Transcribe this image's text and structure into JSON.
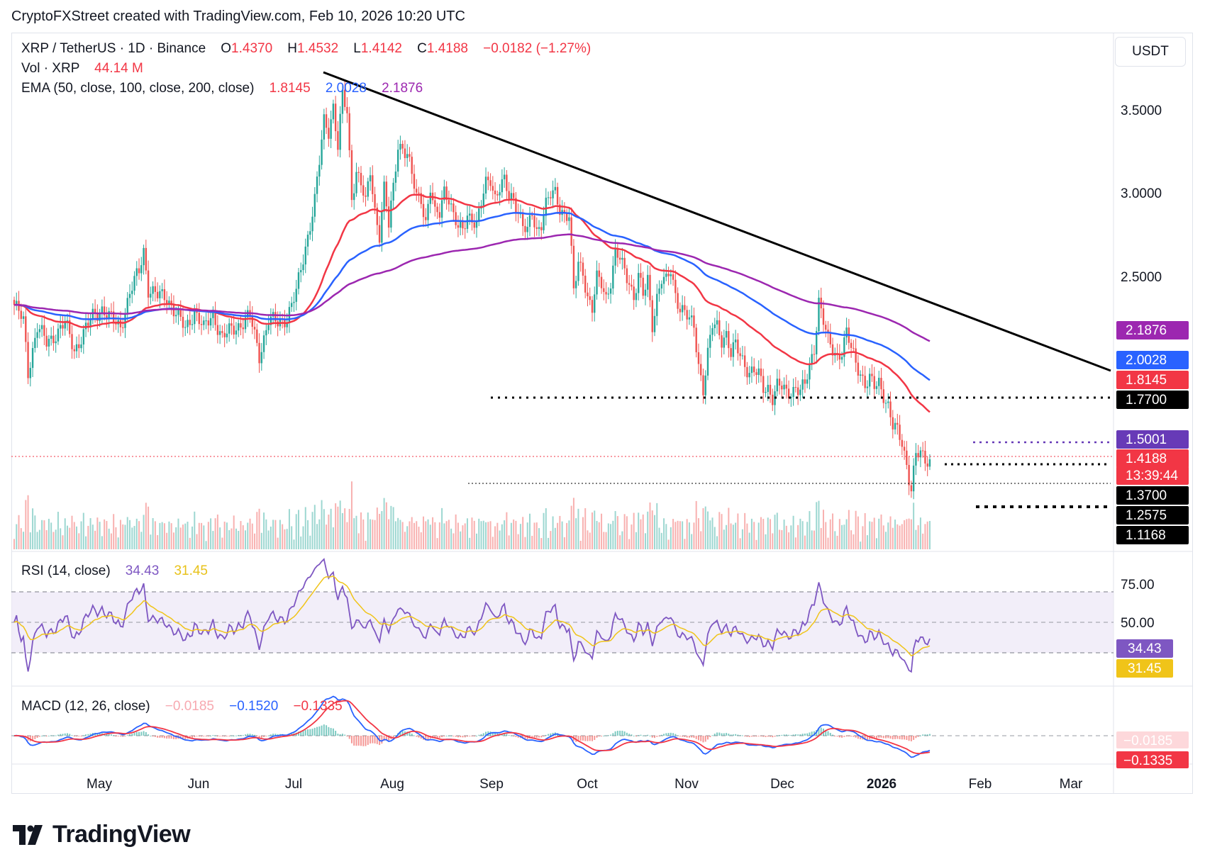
{
  "header": {
    "credit": "CryptoFXStreet created with TradingView.com, Feb 10, 2026 10:20 UTC"
  },
  "toolbar": {
    "currency_label": "USDT"
  },
  "legend": {
    "symbol": "XRP / TetherUS · 1D · Binance",
    "open_label": "O",
    "open": "1.4370",
    "high_label": "H",
    "high": "1.4532",
    "low_label": "L",
    "low": "1.4142",
    "close_label": "C",
    "close": "1.4188",
    "change": "−0.0182 (−1.27%)",
    "vol_label": "Vol · XRP",
    "vol": "44.14 M",
    "ema_label": "EMA (50, close, 100, close, 200, close)",
    "ema50": "1.8145",
    "ema100": "2.0028",
    "ema200": "2.1876",
    "rsi_label": "RSI (14, close)",
    "rsi": "34.43",
    "rsi_ma": "31.45",
    "macd_label": "MACD (12, 26, close)",
    "macd_hist": "−0.0185",
    "macd_line": "−0.1520",
    "macd_signal": "−0.1335"
  },
  "colors": {
    "up": "#26a69a",
    "down": "#ef5350",
    "ema50": "#f23645",
    "ema100": "#2962ff",
    "ema200": "#9c27b0",
    "rsi": "#7e57c2",
    "rsi_ma": "#f0c419",
    "trendline": "#000000"
  },
  "chart_data": {
    "type": "candlestick",
    "price_axis_ticks": [
      "3.5000",
      "3.0000",
      "2.5000"
    ],
    "time_axis_ticks": [
      "May",
      "Jun",
      "Jul",
      "Aug",
      "Sep",
      "Oct",
      "Nov",
      "Dec",
      "2026",
      "Feb",
      "Mar"
    ],
    "rsi_axis_ticks": [
      "75.00",
      "50.00"
    ],
    "price_labels": [
      {
        "value": "2.1876",
        "color": "#9c27b0",
        "text_color": "#ffffff"
      },
      {
        "value": "2.0028",
        "color": "#2962ff",
        "text_color": "#ffffff"
      },
      {
        "value": "1.8145",
        "color": "#f23645",
        "text_color": "#ffffff"
      },
      {
        "value": "1.7700",
        "color": "#000000",
        "text_color": "#ffffff"
      },
      {
        "value": "1.5001",
        "color": "#673ab7",
        "text_color": "#ffffff"
      },
      {
        "value": "1.4188",
        "color": "#f23645",
        "text_color": "#ffffff"
      },
      {
        "value": "13:39:44",
        "color": "#f23645",
        "text_color": "#ffffff"
      },
      {
        "value": "1.3700",
        "color": "#000000",
        "text_color": "#ffffff"
      },
      {
        "value": "1.2575",
        "color": "#000000",
        "text_color": "#ffffff"
      },
      {
        "value": "1.1168",
        "color": "#000000",
        "text_color": "#ffffff"
      }
    ],
    "rsi_labels": [
      {
        "value": "34.43",
        "color": "#7e57c2",
        "text_color": "#ffffff"
      },
      {
        "value": "31.45",
        "color": "#f0c419",
        "text_color": "#131722"
      }
    ],
    "macd_labels": [
      {
        "value": "−0.0185",
        "color": "#fdd8db",
        "text_color": "#131722"
      },
      {
        "value": "−0.1335",
        "color": "#f23645",
        "text_color": "#ffffff"
      }
    ],
    "close_series": [
      [
        0,
        2.35
      ],
      [
        4,
        2.25
      ],
      [
        6,
        1.95
      ],
      [
        10,
        2.22
      ],
      [
        14,
        2.12
      ],
      [
        18,
        2.18
      ],
      [
        22,
        2.24
      ],
      [
        26,
        2.08
      ],
      [
        30,
        2.18
      ],
      [
        34,
        2.28
      ],
      [
        38,
        2.33
      ],
      [
        42,
        2.26
      ],
      [
        46,
        2.22
      ],
      [
        50,
        2.42
      ],
      [
        54,
        2.55
      ],
      [
        56,
        2.68
      ],
      [
        58,
        2.45
      ],
      [
        62,
        2.4
      ],
      [
        66,
        2.4
      ],
      [
        70,
        2.3
      ],
      [
        74,
        2.2
      ],
      [
        78,
        2.32
      ],
      [
        82,
        2.2
      ],
      [
        86,
        2.3
      ],
      [
        90,
        2.15
      ],
      [
        94,
        2.2
      ],
      [
        98,
        2.24
      ],
      [
        102,
        2.28
      ],
      [
        106,
        2.05
      ],
      [
        110,
        2.26
      ],
      [
        114,
        2.24
      ],
      [
        118,
        2.28
      ],
      [
        122,
        2.42
      ],
      [
        126,
        2.7
      ],
      [
        130,
        2.98
      ],
      [
        132,
        3.2
      ],
      [
        134,
        3.45
      ],
      [
        136,
        3.4
      ],
      [
        138,
        3.55
      ],
      [
        140,
        3.3
      ],
      [
        142,
        3.6
      ],
      [
        144,
        3.5
      ],
      [
        146,
        3.0
      ],
      [
        148,
        3.16
      ],
      [
        150,
        3.08
      ],
      [
        152,
        2.95
      ],
      [
        154,
        3.15
      ],
      [
        156,
        2.92
      ],
      [
        158,
        2.78
      ],
      [
        160,
        3.05
      ],
      [
        162,
        2.82
      ],
      [
        164,
        3.05
      ],
      [
        166,
        3.32
      ],
      [
        168,
        3.3
      ],
      [
        170,
        3.25
      ],
      [
        172,
        3.12
      ],
      [
        174,
        3.0
      ],
      [
        176,
        3.0
      ],
      [
        178,
        2.85
      ],
      [
        180,
        3.05
      ],
      [
        182,
        2.88
      ],
      [
        184,
        2.9
      ],
      [
        186,
        3.05
      ],
      [
        188,
        3.0
      ],
      [
        190,
        2.88
      ],
      [
        192,
        2.8
      ],
      [
        194,
        2.8
      ],
      [
        196,
        2.9
      ],
      [
        198,
        2.88
      ],
      [
        200,
        2.82
      ],
      [
        202,
        2.95
      ],
      [
        204,
        3.08
      ],
      [
        206,
        3.12
      ],
      [
        208,
        3.0
      ],
      [
        210,
        3.05
      ],
      [
        212,
        3.08
      ],
      [
        214,
        3.0
      ],
      [
        216,
        3.0
      ],
      [
        218,
        2.92
      ],
      [
        220,
        2.82
      ],
      [
        222,
        2.78
      ],
      [
        224,
        2.9
      ],
      [
        226,
        2.8
      ],
      [
        228,
        2.85
      ],
      [
        230,
        2.95
      ],
      [
        232,
        3.0
      ],
      [
        234,
        3.02
      ],
      [
        236,
        2.94
      ],
      [
        238,
        2.9
      ],
      [
        240,
        2.88
      ],
      [
        242,
        2.42
      ],
      [
        244,
        2.6
      ],
      [
        246,
        2.56
      ],
      [
        248,
        2.4
      ],
      [
        250,
        2.32
      ],
      [
        252,
        2.5
      ],
      [
        254,
        2.48
      ],
      [
        256,
        2.4
      ],
      [
        258,
        2.5
      ],
      [
        260,
        2.65
      ],
      [
        262,
        2.62
      ],
      [
        264,
        2.55
      ],
      [
        266,
        2.5
      ],
      [
        268,
        2.4
      ],
      [
        270,
        2.52
      ],
      [
        272,
        2.4
      ],
      [
        274,
        2.5
      ],
      [
        276,
        2.24
      ],
      [
        278,
        2.4
      ],
      [
        280,
        2.5
      ],
      [
        282,
        2.48
      ],
      [
        284,
        2.56
      ],
      [
        286,
        2.42
      ],
      [
        288,
        2.34
      ],
      [
        290,
        2.3
      ],
      [
        292,
        2.25
      ],
      [
        294,
        2.22
      ],
      [
        296,
        2.0
      ],
      [
        298,
        1.85
      ],
      [
        300,
        2.05
      ],
      [
        302,
        2.22
      ],
      [
        304,
        2.22
      ],
      [
        306,
        2.15
      ],
      [
        308,
        2.18
      ],
      [
        310,
        2.05
      ],
      [
        312,
        2.1
      ],
      [
        314,
        2.05
      ],
      [
        316,
        2.0
      ],
      [
        318,
        1.95
      ],
      [
        320,
        1.95
      ],
      [
        322,
        1.92
      ],
      [
        324,
        1.85
      ],
      [
        326,
        1.86
      ],
      [
        328,
        1.8
      ],
      [
        330,
        1.86
      ],
      [
        332,
        1.85
      ],
      [
        334,
        1.82
      ],
      [
        336,
        1.84
      ],
      [
        338,
        1.86
      ],
      [
        340,
        1.83
      ],
      [
        342,
        1.86
      ],
      [
        344,
        1.98
      ],
      [
        346,
        2.1
      ],
      [
        348,
        2.38
      ],
      [
        350,
        2.25
      ],
      [
        352,
        2.12
      ],
      [
        354,
        2.08
      ],
      [
        356,
        2.05
      ],
      [
        358,
        2.08
      ],
      [
        360,
        2.18
      ],
      [
        362,
        2.08
      ],
      [
        364,
        2.0
      ],
      [
        366,
        1.95
      ],
      [
        368,
        1.88
      ],
      [
        370,
        1.9
      ],
      [
        372,
        1.85
      ],
      [
        374,
        1.88
      ],
      [
        376,
        1.82
      ],
      [
        378,
        1.75
      ],
      [
        380,
        1.62
      ],
      [
        382,
        1.58
      ],
      [
        384,
        1.52
      ],
      [
        386,
        1.4
      ],
      [
        388,
        1.25
      ],
      [
        390,
        1.45
      ],
      [
        392,
        1.44
      ],
      [
        394,
        1.42
      ],
      [
        396,
        1.42
      ]
    ]
  }
}
